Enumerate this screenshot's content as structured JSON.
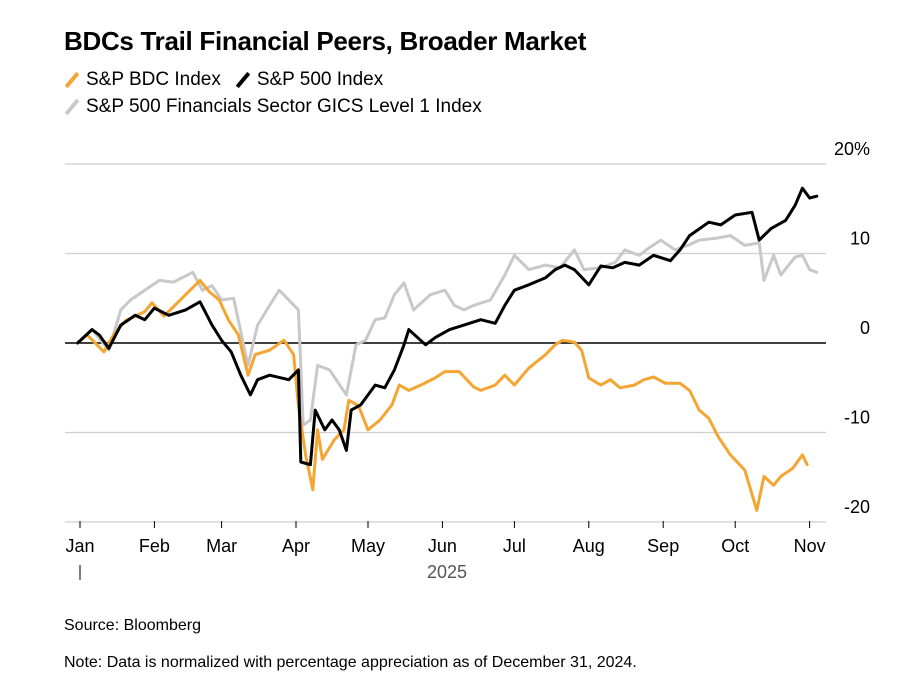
{
  "chart_data": {
    "type": "line",
    "title": "BDCs Trail Financial Peers, Broader Market",
    "xlabel": "2025",
    "ylabel": "",
    "y_unit": "%",
    "ylim": [
      -20,
      20
    ],
    "y_ticks": [
      20,
      10,
      0,
      -10,
      -20
    ],
    "y_tick_labels": [
      "20%",
      "10",
      "0",
      "-10",
      "-20"
    ],
    "y_axis_side": "right",
    "x_ticks": [
      "2025-01-01",
      "2025-02-01",
      "2025-03-01",
      "2025-04-01",
      "2025-05-01",
      "2025-06-01",
      "2025-07-01",
      "2025-08-01",
      "2025-09-01",
      "2025-10-01",
      "2025-11-01"
    ],
    "x_tick_labels": [
      "Jan",
      "Feb",
      "Mar",
      "Apr",
      "May",
      "Jun",
      "Jul",
      "Aug",
      "Sep",
      "Oct",
      "Nov"
    ],
    "grid": true,
    "legend_placement": "top-left",
    "series": [
      {
        "name": "S&P BDC Index",
        "color": "#f4a532",
        "points": [
          [
            "2024-12-31",
            0
          ],
          [
            "2025-01-04",
            0.9
          ],
          [
            "2025-01-11",
            -1.0
          ],
          [
            "2025-01-15",
            0.9
          ],
          [
            "2025-01-20",
            2.5
          ],
          [
            "2025-01-28",
            3.5
          ],
          [
            "2025-01-31",
            4.5
          ],
          [
            "2025-02-05",
            3.0
          ],
          [
            "2025-02-14",
            5.4
          ],
          [
            "2025-02-20",
            7.0
          ],
          [
            "2025-02-24",
            5.7
          ],
          [
            "2025-02-28",
            4.8
          ],
          [
            "2025-03-04",
            2.5
          ],
          [
            "2025-03-08",
            0.9
          ],
          [
            "2025-03-12",
            -3.6
          ],
          [
            "2025-03-15",
            -1.3
          ],
          [
            "2025-03-21",
            -0.8
          ],
          [
            "2025-03-27",
            0.3
          ],
          [
            "2025-03-31",
            -1.3
          ],
          [
            "2025-04-02",
            -7.0
          ],
          [
            "2025-04-05",
            -12.5
          ],
          [
            "2025-04-08",
            -16.4
          ],
          [
            "2025-04-10",
            -9.7
          ],
          [
            "2025-04-12",
            -13.0
          ],
          [
            "2025-04-17",
            -10.8
          ],
          [
            "2025-04-21",
            -9.7
          ],
          [
            "2025-04-23",
            -6.4
          ],
          [
            "2025-04-27",
            -7.0
          ],
          [
            "2025-05-01",
            -9.7
          ],
          [
            "2025-05-06",
            -8.6
          ],
          [
            "2025-05-11",
            -6.9
          ],
          [
            "2025-05-14",
            -4.7
          ],
          [
            "2025-05-18",
            -5.3
          ],
          [
            "2025-05-23",
            -4.7
          ],
          [
            "2025-05-29",
            -3.9
          ],
          [
            "2025-06-02",
            -3.2
          ],
          [
            "2025-06-08",
            -3.2
          ],
          [
            "2025-06-14",
            -4.9
          ],
          [
            "2025-06-17",
            -5.3
          ],
          [
            "2025-06-23",
            -4.7
          ],
          [
            "2025-06-27",
            -3.6
          ],
          [
            "2025-07-01",
            -4.7
          ],
          [
            "2025-07-07",
            -2.8
          ],
          [
            "2025-07-14",
            -1.3
          ],
          [
            "2025-07-18",
            -0.2
          ],
          [
            "2025-07-21",
            0.3
          ],
          [
            "2025-07-26",
            0.1
          ],
          [
            "2025-07-29",
            -0.8
          ],
          [
            "2025-08-01",
            -3.9
          ],
          [
            "2025-08-06",
            -4.7
          ],
          [
            "2025-08-10",
            -4.1
          ],
          [
            "2025-08-14",
            -5.0
          ],
          [
            "2025-08-20",
            -4.7
          ],
          [
            "2025-08-24",
            -4.1
          ],
          [
            "2025-08-28",
            -3.8
          ],
          [
            "2025-09-02",
            -4.5
          ],
          [
            "2025-09-08",
            -4.5
          ],
          [
            "2025-09-12",
            -5.3
          ],
          [
            "2025-09-16",
            -7.5
          ],
          [
            "2025-09-20",
            -8.4
          ],
          [
            "2025-09-24",
            -10.5
          ],
          [
            "2025-09-29",
            -12.5
          ],
          [
            "2025-10-05",
            -14.2
          ],
          [
            "2025-10-10",
            -18.7
          ],
          [
            "2025-10-13",
            -14.9
          ],
          [
            "2025-10-17",
            -15.9
          ],
          [
            "2025-10-20",
            -14.9
          ],
          [
            "2025-10-25",
            -14.0
          ],
          [
            "2025-10-29",
            -12.5
          ],
          [
            "2025-10-31",
            -13.6
          ]
        ]
      },
      {
        "name": "S&P 500 Index",
        "color": "#000000",
        "points": [
          [
            "2024-12-31",
            0
          ],
          [
            "2025-01-06",
            1.5
          ],
          [
            "2025-01-09",
            0.9
          ],
          [
            "2025-01-13",
            -0.6
          ],
          [
            "2025-01-18",
            2.0
          ],
          [
            "2025-01-24",
            3.1
          ],
          [
            "2025-01-28",
            2.6
          ],
          [
            "2025-02-01",
            3.9
          ],
          [
            "2025-02-07",
            3.1
          ],
          [
            "2025-02-14",
            3.7
          ],
          [
            "2025-02-20",
            4.6
          ],
          [
            "2025-02-25",
            2.0
          ],
          [
            "2025-03-01",
            0.3
          ],
          [
            "2025-03-05",
            -1.0
          ],
          [
            "2025-03-09",
            -3.6
          ],
          [
            "2025-03-13",
            -5.8
          ],
          [
            "2025-03-16",
            -4.1
          ],
          [
            "2025-03-21",
            -3.6
          ],
          [
            "2025-03-29",
            -4.1
          ],
          [
            "2025-04-02",
            -3.0
          ],
          [
            "2025-04-03",
            -13.3
          ],
          [
            "2025-04-07",
            -13.6
          ],
          [
            "2025-04-09",
            -7.5
          ],
          [
            "2025-04-13",
            -9.7
          ],
          [
            "2025-04-16",
            -8.6
          ],
          [
            "2025-04-19",
            -9.7
          ],
          [
            "2025-04-22",
            -12.0
          ],
          [
            "2025-04-24",
            -7.5
          ],
          [
            "2025-04-28",
            -6.9
          ],
          [
            "2025-05-04",
            -4.7
          ],
          [
            "2025-05-08",
            -5.0
          ],
          [
            "2025-05-12",
            -3.0
          ],
          [
            "2025-05-16",
            -0.2
          ],
          [
            "2025-05-18",
            1.5
          ],
          [
            "2025-05-25",
            -0.2
          ],
          [
            "2025-05-29",
            0.6
          ],
          [
            "2025-06-04",
            1.5
          ],
          [
            "2025-06-10",
            2.0
          ],
          [
            "2025-06-17",
            2.6
          ],
          [
            "2025-06-23",
            2.2
          ],
          [
            "2025-06-27",
            4.2
          ],
          [
            "2025-07-01",
            5.9
          ],
          [
            "2025-07-07",
            6.5
          ],
          [
            "2025-07-14",
            7.3
          ],
          [
            "2025-07-18",
            8.2
          ],
          [
            "2025-07-22",
            8.7
          ],
          [
            "2025-07-26",
            8.2
          ],
          [
            "2025-08-01",
            6.5
          ],
          [
            "2025-08-06",
            8.6
          ],
          [
            "2025-08-11",
            8.4
          ],
          [
            "2025-08-16",
            9.0
          ],
          [
            "2025-08-22",
            8.7
          ],
          [
            "2025-08-28",
            9.8
          ],
          [
            "2025-09-04",
            9.2
          ],
          [
            "2025-09-08",
            10.4
          ],
          [
            "2025-09-12",
            12.0
          ],
          [
            "2025-09-20",
            13.5
          ],
          [
            "2025-09-25",
            13.2
          ],
          [
            "2025-10-01",
            14.3
          ],
          [
            "2025-10-08",
            14.6
          ],
          [
            "2025-10-11",
            11.5
          ],
          [
            "2025-10-16",
            12.8
          ],
          [
            "2025-10-22",
            13.7
          ],
          [
            "2025-10-26",
            15.4
          ],
          [
            "2025-10-29",
            17.3
          ],
          [
            "2025-11-01",
            16.2
          ],
          [
            "2025-11-04",
            16.4
          ]
        ]
      },
      {
        "name": "S&P 500 Financials Sector GICS Level 1 Index",
        "color": "#c8c8c8",
        "points": [
          [
            "2024-12-31",
            0
          ],
          [
            "2025-01-06",
            1.5
          ],
          [
            "2025-01-13",
            -0.8
          ],
          [
            "2025-01-18",
            3.7
          ],
          [
            "2025-01-22",
            4.8
          ],
          [
            "2025-01-28",
            5.9
          ],
          [
            "2025-02-03",
            7.0
          ],
          [
            "2025-02-09",
            6.8
          ],
          [
            "2025-02-17",
            7.9
          ],
          [
            "2025-02-21",
            5.9
          ],
          [
            "2025-02-25",
            6.4
          ],
          [
            "2025-03-01",
            4.8
          ],
          [
            "2025-03-06",
            5.0
          ],
          [
            "2025-03-12",
            -2.5
          ],
          [
            "2025-03-16",
            2.0
          ],
          [
            "2025-03-21",
            4.2
          ],
          [
            "2025-03-25",
            5.9
          ],
          [
            "2025-03-29",
            4.8
          ],
          [
            "2025-04-02",
            3.7
          ],
          [
            "2025-04-04",
            -9.2
          ],
          [
            "2025-04-07",
            -8.6
          ],
          [
            "2025-04-10",
            -2.5
          ],
          [
            "2025-04-15",
            -3.0
          ],
          [
            "2025-04-22",
            -5.8
          ],
          [
            "2025-04-26",
            -0.2
          ],
          [
            "2025-04-30",
            0.3
          ],
          [
            "2025-05-04",
            2.6
          ],
          [
            "2025-05-08",
            2.8
          ],
          [
            "2025-05-12",
            5.4
          ],
          [
            "2025-05-16",
            6.7
          ],
          [
            "2025-05-20",
            3.7
          ],
          [
            "2025-05-27",
            5.4
          ],
          [
            "2025-06-02",
            5.9
          ],
          [
            "2025-06-06",
            4.2
          ],
          [
            "2025-06-10",
            3.7
          ],
          [
            "2025-06-14",
            4.2
          ],
          [
            "2025-06-21",
            4.8
          ],
          [
            "2025-06-27",
            7.6
          ],
          [
            "2025-07-01",
            9.8
          ],
          [
            "2025-07-07",
            8.2
          ],
          [
            "2025-07-14",
            8.7
          ],
          [
            "2025-07-20",
            8.4
          ],
          [
            "2025-07-26",
            10.4
          ],
          [
            "2025-07-30",
            8.2
          ],
          [
            "2025-08-06",
            8.4
          ],
          [
            "2025-08-12",
            9.0
          ],
          [
            "2025-08-16",
            10.4
          ],
          [
            "2025-08-22",
            9.8
          ],
          [
            "2025-08-26",
            10.6
          ],
          [
            "2025-08-31",
            11.5
          ],
          [
            "2025-09-06",
            10.4
          ],
          [
            "2025-09-12",
            11.0
          ],
          [
            "2025-09-16",
            11.5
          ],
          [
            "2025-09-23",
            11.7
          ],
          [
            "2025-09-29",
            12.0
          ],
          [
            "2025-10-05",
            10.9
          ],
          [
            "2025-10-11",
            11.2
          ],
          [
            "2025-10-13",
            7.0
          ],
          [
            "2025-10-17",
            9.8
          ],
          [
            "2025-10-20",
            7.6
          ],
          [
            "2025-10-26",
            9.6
          ],
          [
            "2025-10-29",
            9.8
          ],
          [
            "2025-11-01",
            8.2
          ],
          [
            "2025-11-04",
            7.9
          ]
        ]
      }
    ]
  },
  "footer": {
    "source": "Source: Bloomberg",
    "note": "Note: Data is normalized with percentage appreciation as of December 31, 2024."
  }
}
